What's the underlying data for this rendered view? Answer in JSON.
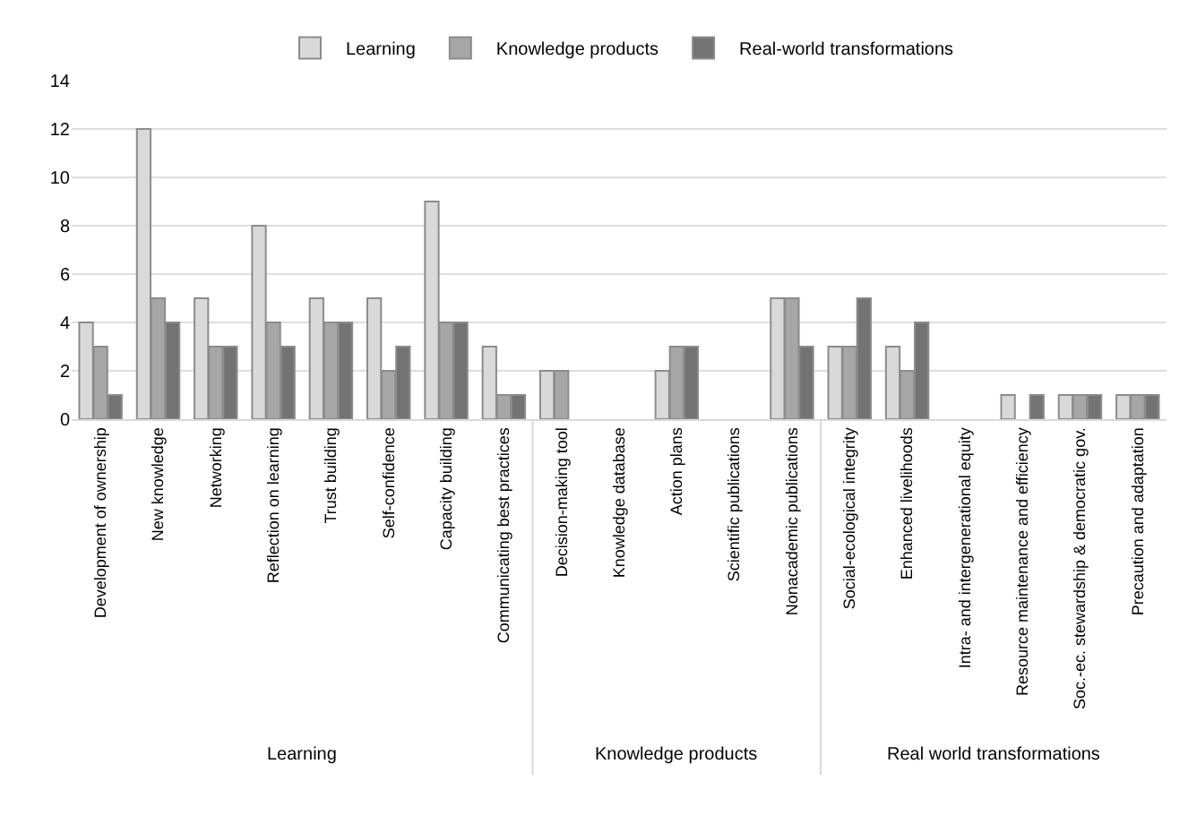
{
  "chart_data": {
    "type": "bar",
    "categories": [
      "Development of ownership",
      "New knowledge",
      "Networking",
      "Reflection on learning",
      "Trust building",
      "Self-confidence",
      "Capacity building",
      "Communicating best practices",
      "Decision-making tool",
      "Knowledge database",
      "Action plans",
      "Scientific publications",
      "Nonacademic publications",
      "Social-ecological integrity",
      "Enhanced livelihoods",
      "Intra- and intergenerational equity",
      "Resource maintenance and efficiency",
      "Soc.-ec. stewardship & democratic gov.",
      "Precaution and adaptation"
    ],
    "series": [
      {
        "name": "Learning",
        "color": "#d9d9d9",
        "values": [
          4,
          12,
          5,
          8,
          5,
          5,
          9,
          3,
          2,
          null,
          2,
          null,
          5,
          3,
          3,
          null,
          1,
          1,
          1
        ]
      },
      {
        "name": "Knowledge products",
        "color": "#a6a6a6",
        "values": [
          3,
          5,
          3,
          4,
          4,
          2,
          4,
          1,
          2,
          null,
          3,
          null,
          5,
          3,
          2,
          null,
          null,
          1,
          1
        ]
      },
      {
        "name": "Real-world transformations",
        "color": "#737373",
        "values": [
          1,
          4,
          3,
          3,
          4,
          3,
          4,
          1,
          null,
          null,
          3,
          null,
          3,
          5,
          4,
          null,
          1,
          1,
          1
        ]
      }
    ],
    "ylim": [
      0,
      14
    ],
    "yticks": [
      0,
      2,
      4,
      6,
      8,
      10,
      12,
      14
    ],
    "grid": "y",
    "legend": "top",
    "annotations": [
      "Learning",
      "Knowledge products",
      "Real world transformations"
    ]
  }
}
